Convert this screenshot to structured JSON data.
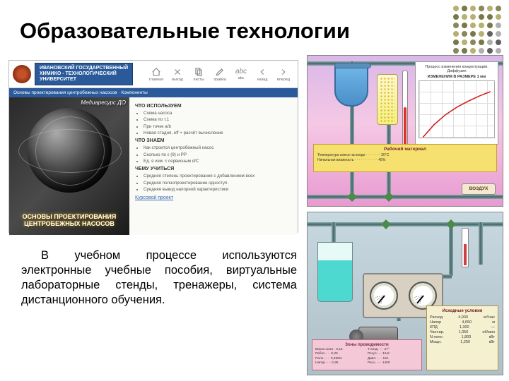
{
  "title": "Образовательные технологии",
  "dot_colors": [
    "#b8b070",
    "#787848",
    "#b8b070",
    "#888858",
    "#b8b070",
    "#888858",
    "#787848",
    "#b8b070",
    "#b8b070",
    "#787848",
    "#787848",
    "#b8b070",
    "#888858",
    "#787848",
    "#b8b070",
    "#b8b070",
    "#787848",
    "#b0b0b0",
    "#b8b070",
    "#888858",
    "#787848",
    "#b8b070",
    "#606060",
    "#b0b0b0",
    "#787848",
    "#b8b070",
    "#888858",
    "#787848",
    "#b0b0b0",
    "#606060",
    "#888858",
    "#787848",
    "#b8b070",
    "#b0b0b0",
    "#606060",
    "#b0b0b0"
  ],
  "body_text": "В учебном процессе используются электронные учебные пособия, виртуальные лабораторные стенды, тренажеры, система дистанционного обучения.",
  "uni_header": {
    "line1": "ИВАНОВСКИЙ ГОСУДАРСТВЕННЫЙ",
    "line2": "ХИМИКО - ТЕХНОЛОГИЧЕСКИЙ",
    "line3": "УНИВЕРСИТЕТ",
    "nav": [
      "главная",
      "выход",
      "листы/крат",
      "карандаш",
      "abc",
      "⇦",
      "⇨"
    ],
    "nav_labels": [
      "главная",
      "выход",
      "листы",
      "правка",
      "abc",
      "назад",
      "вперед"
    ]
  },
  "blue_bar": "Основы проектирования центробежных насосов · Компоненты",
  "hero": {
    "top_label": "Медиаресурс ДО",
    "caption1": "ОСНОВЫ ПРОЕКТИРОВАНИЯ",
    "caption2": "ЦЕНТРОБЕЖНЫХ НАСОСОВ"
  },
  "content": {
    "h1": "ЧТО ИСПОЛЬЗУЕМ",
    "list1": [
      "Схема насоса",
      "Схема по т.1",
      "При точке a/b",
      "Новая стадия, eff + расчёт вычисление"
    ],
    "h2": "ЧТО ЗНАЕМ",
    "list2": [
      "Как строится центробежный насос",
      "Сколько по ε (θ) и РР",
      "Ед. я изм. с сервисным d/C"
    ],
    "h3": "ЧЕМУ УЧИТЬСЯ",
    "list3": [
      "Средняя степень проектирования с добавлением всех",
      "Средняя полнопроектирование одноступ.",
      "Средняя вывод напорной характеристики"
    ],
    "link": "Курсовой проект"
  },
  "sim_top": {
    "chart_title_1": "Процесс изменения концентрации. Диффузия",
    "chart_title_2": "ИЗМЕНЕНИЯ В РАЗМЕРЕ 1 мм",
    "chart_xlim": [
      0,
      40
    ],
    "chart_ylim": [
      0,
      1.0
    ],
    "chart_line_color": "#d02020",
    "yellow_title": "Рабочий материал",
    "yellow_line1": "Температура смеси на входе · · · · · · · 20°C",
    "yellow_line2": "Начальная влажность · · · · · · · · · · · 45%",
    "air_button": "ВОЗДУХ"
  },
  "sim_bottom": {
    "pink_title": "Зоны проводимости",
    "pink_cols": [
      "Верхн.зона · 0,15\nРабоч. ··· 0,30\nПолн. ···· 0,450m\nНапор ···· 0,35",
      "T вход ···· 27°\nРегул. ··· 16,8\nДавл. ···· 161\nРасх. ···· 1400"
    ],
    "result_title": "Исходные условия",
    "results": [
      [
        "Расход",
        "4,930",
        "м³/час"
      ],
      [
        "Напор",
        "4,650",
        "м"
      ],
      [
        "КПД",
        "1,300",
        "—"
      ],
      [
        "Част.вр.",
        "1,050",
        "об/мин"
      ],
      [
        "N полн.",
        "1,800",
        "кВт"
      ],
      [
        "Мощн.",
        "1,250",
        "кВт"
      ]
    ]
  }
}
